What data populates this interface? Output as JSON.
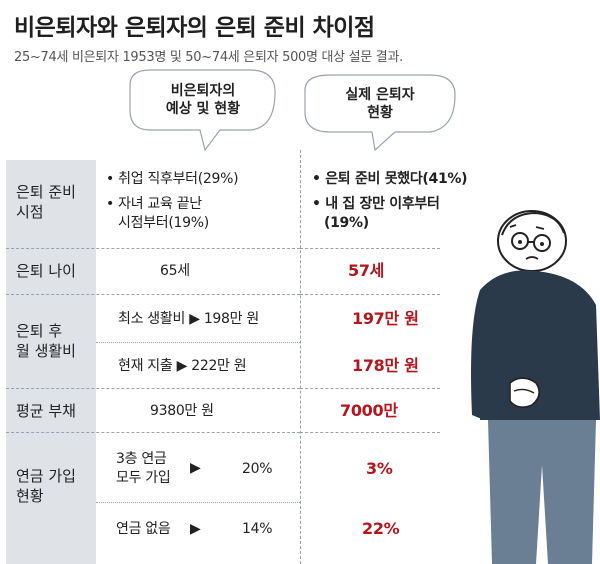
{
  "title": "비은퇴자와 은퇴자의 은퇴 준비 차이점",
  "subtitle": "25~74세 비은퇴자 1953명 및 50~74세 은퇴자 500명 대상 설문 결과.",
  "chart_data": {
    "type": "table",
    "columns": [
      "",
      "비은퇴자의 예상 및 현황",
      "실제 은퇴자 현황"
    ],
    "column_lines": {
      "left": [
        "비은퇴자의",
        "예상 및 현황"
      ],
      "right": [
        "실제 은퇴자",
        "현황"
      ]
    },
    "rows": [
      {
        "category": [
          "은퇴 준비",
          "시점"
        ],
        "left": [
          "• 취업 직후부터(29%)",
          "• 자녀 교육 끝난",
          "시점부터(19%)"
        ],
        "right": [
          "• 은퇴 준비 못했다(41%)",
          "• 내 집 장만 이후부터",
          "(19%)"
        ]
      },
      {
        "category": [
          "은퇴 나이"
        ],
        "left": "65세",
        "right": "57세"
      },
      {
        "category": [
          "은퇴 후",
          "월 생활비"
        ],
        "sub": [
          {
            "left": "최소 생활비 ▶ 198만 원",
            "right": "197만 원"
          },
          {
            "left": "현재 지출 ▶ 222만 원",
            "right": "178만 원"
          }
        ]
      },
      {
        "category": [
          "평균 부채"
        ],
        "left": "9380만 원",
        "right": "7000만"
      },
      {
        "category": [
          "연금 가입",
          "현황"
        ],
        "sub": [
          {
            "left_label": [
              "3층 연금",
              "모두 가입"
            ],
            "arrow": "▶",
            "left_value": "20%",
            "right": "3%"
          },
          {
            "left_label": [
              "연금 없음"
            ],
            "arrow": "▶",
            "left_value": "14%",
            "right": "22%"
          }
        ]
      }
    ]
  },
  "colors": {
    "highlight": "#b3161c",
    "panel": "#dfe3e8",
    "figure_coat": "#2b3a4a",
    "figure_pants": "#6b7f94"
  },
  "illustration": "worried-elderly-man-icon"
}
